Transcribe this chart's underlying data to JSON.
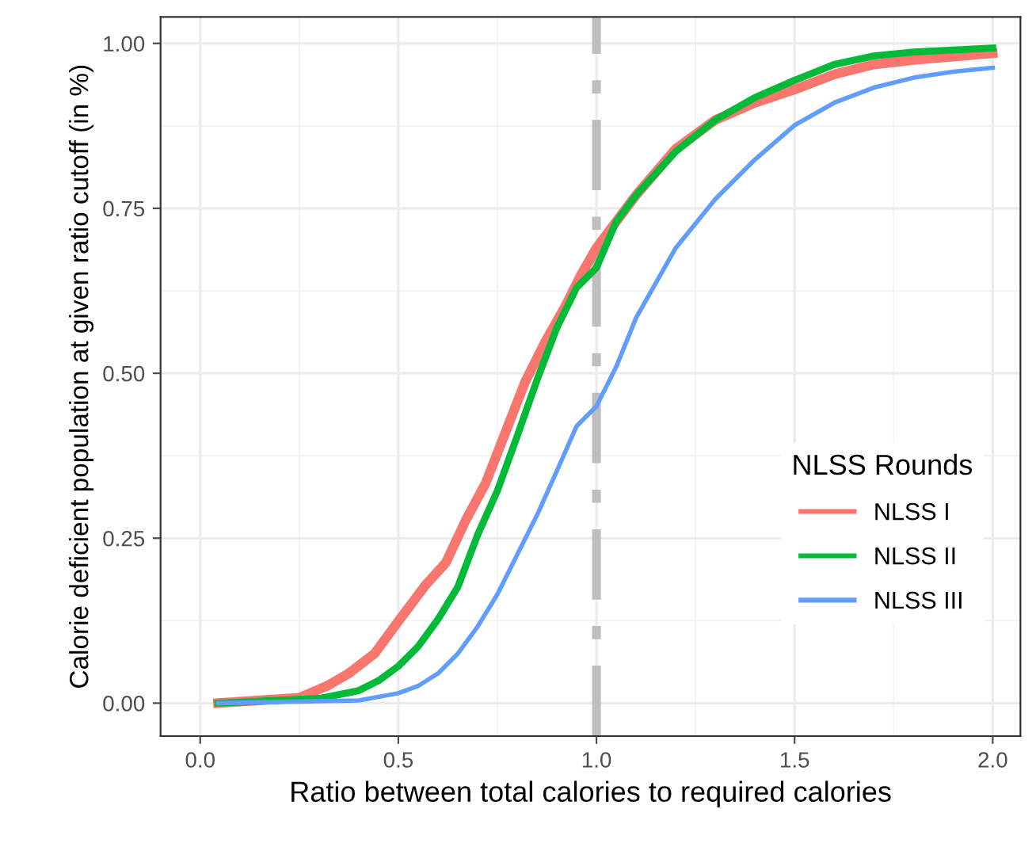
{
  "chart_data": {
    "type": "line",
    "xlabel": "Ratio between total calories to required calories",
    "ylabel": "Calorie deficient population at given ratio cutoff (in %)",
    "legend_title": "NLSS Rounds",
    "legend": "bottom right",
    "grid": true,
    "line_style": "solid",
    "marker": "none",
    "xlim": [
      -0.1,
      2.07
    ],
    "ylim": [
      -0.05,
      1.04
    ],
    "xticks": [
      {
        "value": 0,
        "label": "0.0"
      },
      0.5,
      {
        "value": 1,
        "label": "1.0"
      },
      1.5,
      {
        "value": 2,
        "label": "2.0"
      }
    ],
    "yticks": [
      {
        "value": 0,
        "label": "0.00"
      },
      0.25,
      {
        "value": 0.5,
        "label": "0.50"
      },
      0.75,
      {
        "value": 1,
        "label": "1.00"
      }
    ],
    "ref_lines": [
      {
        "axis": "x",
        "value": 1,
        "label": null,
        "color": "#bebebe",
        "line_style": "dashed"
      }
    ],
    "series": [
      {
        "name": "NLSS I",
        "color": "#f8766d",
        "x": [
          0.045,
          0.25,
          0.32,
          0.375,
          0.44,
          0.5,
          0.57,
          0.62,
          0.67,
          0.72,
          0.757,
          0.82,
          0.87,
          0.92,
          0.96,
          1.0,
          1.1,
          1.2,
          1.3,
          1.4,
          1.5,
          1.6,
          1.7,
          1.8,
          2.0
        ],
        "values": [
          0,
          0.008,
          0.026,
          0.045,
          0.075,
          0.124,
          0.18,
          0.213,
          0.277,
          0.333,
          0.39,
          0.487,
          0.547,
          0.6,
          0.648,
          0.69,
          0.77,
          0.84,
          0.884,
          0.91,
          0.93,
          0.953,
          0.968,
          0.975,
          0.985
        ]
      },
      {
        "name": "NLSS II",
        "color": "#00ba38",
        "x": [
          0.045,
          0.3,
          0.4,
          0.45,
          0.5,
          0.55,
          0.6,
          0.65,
          0.7,
          0.75,
          0.8,
          0.85,
          0.9,
          0.95,
          1.0,
          1.05,
          1.1,
          1.2,
          1.3,
          1.4,
          1.5,
          1.6,
          1.7,
          1.8,
          2.0
        ],
        "values": [
          0,
          0.007,
          0.019,
          0.034,
          0.056,
          0.086,
          0.127,
          0.176,
          0.255,
          0.322,
          0.405,
          0.49,
          0.569,
          0.63,
          0.66,
          0.73,
          0.77,
          0.836,
          0.884,
          0.918,
          0.944,
          0.968,
          0.981,
          0.987,
          0.993
        ]
      },
      {
        "name": "NLSS III",
        "color": "#619cff",
        "x": [
          0.045,
          0.4,
          0.5,
          0.55,
          0.6,
          0.65,
          0.7,
          0.75,
          0.8,
          0.85,
          0.9,
          0.95,
          1.0,
          1.05,
          1.1,
          1.2,
          1.3,
          1.4,
          1.5,
          1.6,
          1.7,
          1.8,
          1.9,
          2.0
        ],
        "values": [
          0,
          0.004,
          0.015,
          0.026,
          0.045,
          0.075,
          0.116,
          0.165,
          0.225,
          0.285,
          0.352,
          0.42,
          0.45,
          0.51,
          0.584,
          0.69,
          0.764,
          0.824,
          0.876,
          0.91,
          0.933,
          0.948,
          0.957,
          0.963
        ]
      }
    ]
  }
}
